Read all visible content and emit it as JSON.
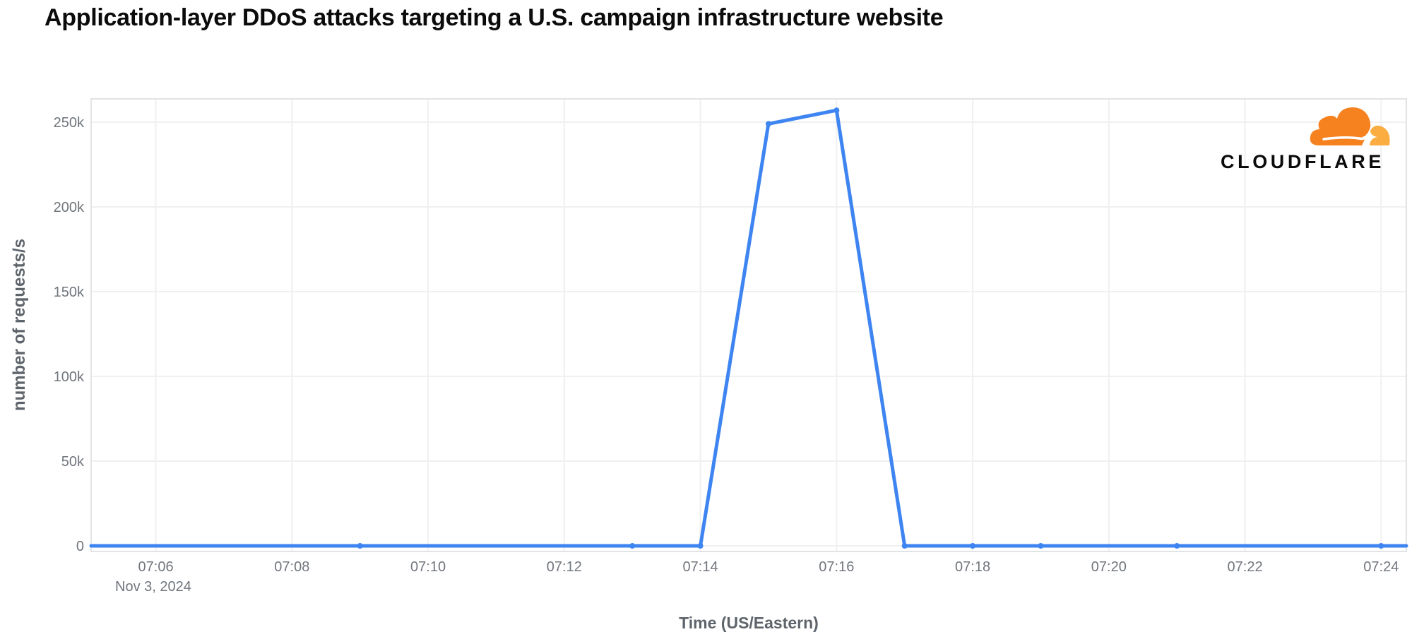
{
  "chart": {
    "title": "Application-layer DDoS attacks targeting a U.S. campaign infrastructure website",
    "y_axis_title": "number of requests/s",
    "x_axis_title": "Time (US/Eastern)"
  },
  "logo": {
    "wordmark": "CLOUDFLARE",
    "cloud_main_color": "#F6821F",
    "cloud_back_color": "#FBAD41"
  },
  "colors": {
    "line": "#3E85F2",
    "grid": "#F0F0F1",
    "border": "#E2E3E5",
    "tick_text": "#71767D",
    "axis_title_text": "#5E646B",
    "title_text": "#0B0B0B"
  },
  "chart_data": {
    "type": "line",
    "title": "Application-layer DDoS attacks targeting a U.S. campaign infrastructure website",
    "xlabel": "Time (US/Eastern)",
    "ylabel": "number of requests/s",
    "date_label": "Nov 3, 2024",
    "x": [
      "07:05",
      "07:06",
      "07:07",
      "07:08",
      "07:09",
      "07:10",
      "07:11",
      "07:12",
      "07:13",
      "07:14",
      "07:15",
      "07:16",
      "07:17",
      "07:18",
      "07:19",
      "07:20",
      "07:21",
      "07:22",
      "07:23",
      "07:24"
    ],
    "values": [
      0,
      0,
      0,
      0,
      0,
      0,
      0,
      0,
      0,
      0,
      249000,
      257000,
      0,
      0,
      0,
      0,
      0,
      0,
      0,
      0
    ],
    "x_ticks": [
      "07:06",
      "07:08",
      "07:10",
      "07:12",
      "07:14",
      "07:16",
      "07:18",
      "07:20",
      "07:22",
      "07:24"
    ],
    "y_ticks": [
      {
        "label": "0",
        "value": 0
      },
      {
        "label": "50k",
        "value": 50000
      },
      {
        "label": "100k",
        "value": 100000
      },
      {
        "label": "150k",
        "value": 150000
      },
      {
        "label": "200k",
        "value": 200000
      },
      {
        "label": "250k",
        "value": 250000
      }
    ],
    "marker_times": [
      "07:09",
      "07:13",
      "07:14",
      "07:15",
      "07:16",
      "07:17",
      "07:18",
      "07:19",
      "07:21",
      "07:24"
    ],
    "x_domain_minutes": [
      425.05,
      444.37
    ],
    "ylim": [
      -3333,
      263750
    ],
    "grid": true,
    "legend": false
  }
}
